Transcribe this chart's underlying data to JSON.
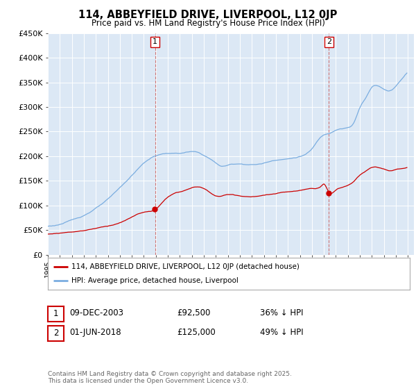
{
  "title": "114, ABBEYFIELD DRIVE, LIVERPOOL, L12 0JP",
  "subtitle": "Price paid vs. HM Land Registry's House Price Index (HPI)",
  "ylim": [
    0,
    450000
  ],
  "yticks": [
    0,
    50000,
    100000,
    150000,
    200000,
    250000,
    300000,
    350000,
    400000,
    450000
  ],
  "ytick_labels": [
    "£0",
    "£50K",
    "£100K",
    "£150K",
    "£200K",
    "£250K",
    "£300K",
    "£350K",
    "£400K",
    "£450K"
  ],
  "purchase1": {
    "date": 2003.93,
    "price": 92500,
    "label": "1"
  },
  "purchase2": {
    "date": 2018.42,
    "price": 125000,
    "label": "2"
  },
  "legend_entry1": "114, ABBEYFIELD DRIVE, LIVERPOOL, L12 0JP (detached house)",
  "legend_entry2": "HPI: Average price, detached house, Liverpool",
  "table_row1": [
    "1",
    "09-DEC-2003",
    "£92,500",
    "36% ↓ HPI"
  ],
  "table_row2": [
    "2",
    "01-JUN-2018",
    "£125,000",
    "49% ↓ HPI"
  ],
  "footnote": "Contains HM Land Registry data © Crown copyright and database right 2025.\nThis data is licensed under the Open Government Licence v3.0.",
  "line_color_red": "#cc0000",
  "line_color_blue": "#7aade0",
  "vline_color": "#cc0000",
  "plot_bg_color": "#dce8f5"
}
